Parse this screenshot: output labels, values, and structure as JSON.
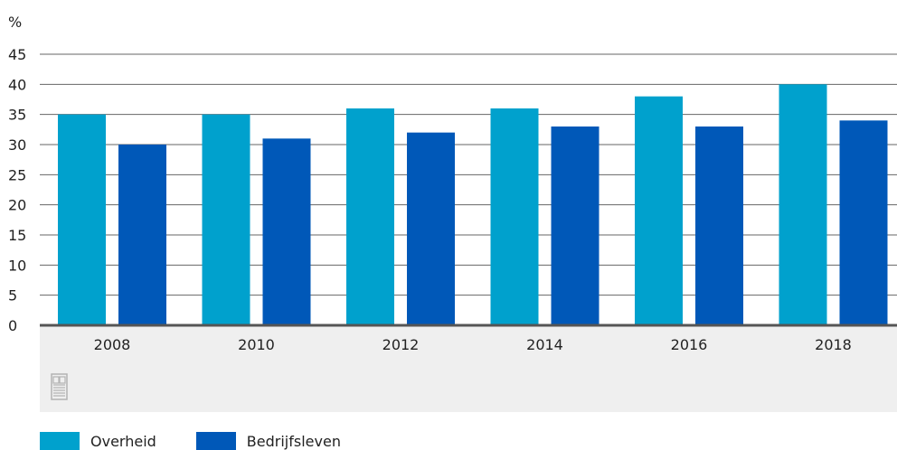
{
  "chart_data": {
    "type": "bar",
    "title": "",
    "xlabel": "",
    "ylabel": "%",
    "ylim": [
      0,
      45
    ],
    "yticks": [
      0,
      5,
      10,
      15,
      20,
      25,
      30,
      35,
      40,
      45
    ],
    "grid": true,
    "legend_position": "bottom-left",
    "categories": [
      "2008",
      "2010",
      "2012",
      "2014",
      "2016",
      "2018"
    ],
    "series": [
      {
        "name": "Overheid",
        "color": "#00a1cd",
        "values": [
          35,
          35,
          36,
          36,
          38,
          40
        ]
      },
      {
        "name": "Bedrijfsleven",
        "color": "#0058b8",
        "values": [
          30,
          31,
          32,
          33,
          33,
          34
        ]
      }
    ]
  },
  "colors": {
    "grid": "#666666",
    "axis": "#555555",
    "category_band": "#efefef",
    "logo": "#b3b3b3"
  },
  "logo": {
    "icon": "cbs-logo-icon",
    "text": "cbs"
  }
}
